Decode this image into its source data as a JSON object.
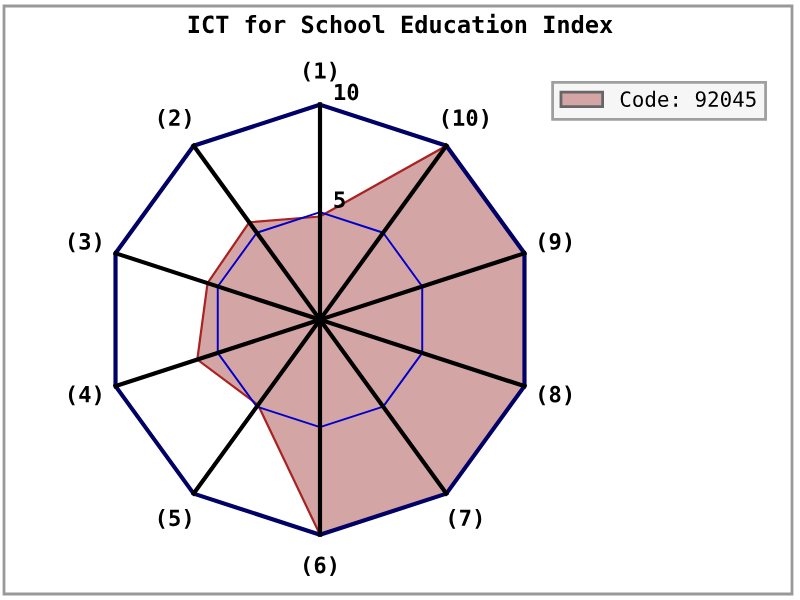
{
  "chart_data": {
    "type": "radar",
    "title": "ICT for School Education Index",
    "categories": [
      "(1)",
      "(10)",
      "(9)",
      "(8)",
      "(7)",
      "(6)",
      "(5)",
      "(4)",
      "(3)",
      "(2)"
    ],
    "series": [
      {
        "name": "Code: 92045",
        "color": "#d4a5a5",
        "values": [
          4.8,
          10,
          10,
          10,
          10,
          10,
          4.9,
          6.0,
          5.5,
          5.6
        ]
      }
    ],
    "ylim": [
      0,
      10
    ],
    "yticks": [
      5,
      10
    ],
    "grid": true,
    "legend": "top right"
  }
}
